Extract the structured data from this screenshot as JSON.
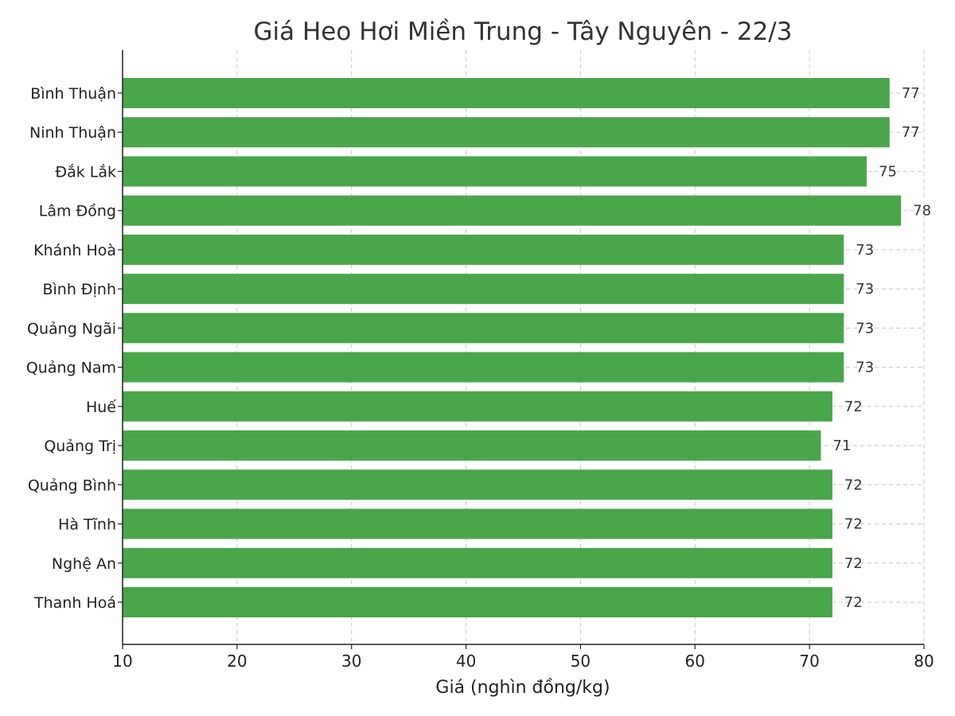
{
  "chart_data": {
    "type": "bar",
    "orientation": "horizontal",
    "title": "Giá Heo Hơi Miền Trung - Tây Nguyên - 22/3",
    "xlabel": "Giá (nghìn đồng/kg)",
    "ylabel": "",
    "xlim": [
      10,
      80
    ],
    "xticks": [
      "10",
      "20",
      "30",
      "40",
      "50",
      "60",
      "70",
      "80"
    ],
    "grid": true,
    "bar_color": "#4aa64a",
    "categories": [
      "Bình Thuận",
      "Ninh Thuận",
      "Đắk Lắk",
      "Lâm Đồng",
      "Khánh Hoà",
      "Bình Định",
      "Quảng Ngãi",
      "Quảng Nam",
      "Huế",
      "Quảng Trị",
      "Quảng Bình",
      "Hà Tĩnh",
      "Nghệ An",
      "Thanh Hoá"
    ],
    "values": [
      77,
      77,
      75,
      78,
      73,
      73,
      73,
      73,
      72,
      71,
      72,
      72,
      72,
      72
    ],
    "value_labels": [
      "77",
      "77",
      "75",
      "78",
      "73",
      "73",
      "73",
      "73",
      "72",
      "71",
      "72",
      "72",
      "72",
      "72"
    ]
  }
}
